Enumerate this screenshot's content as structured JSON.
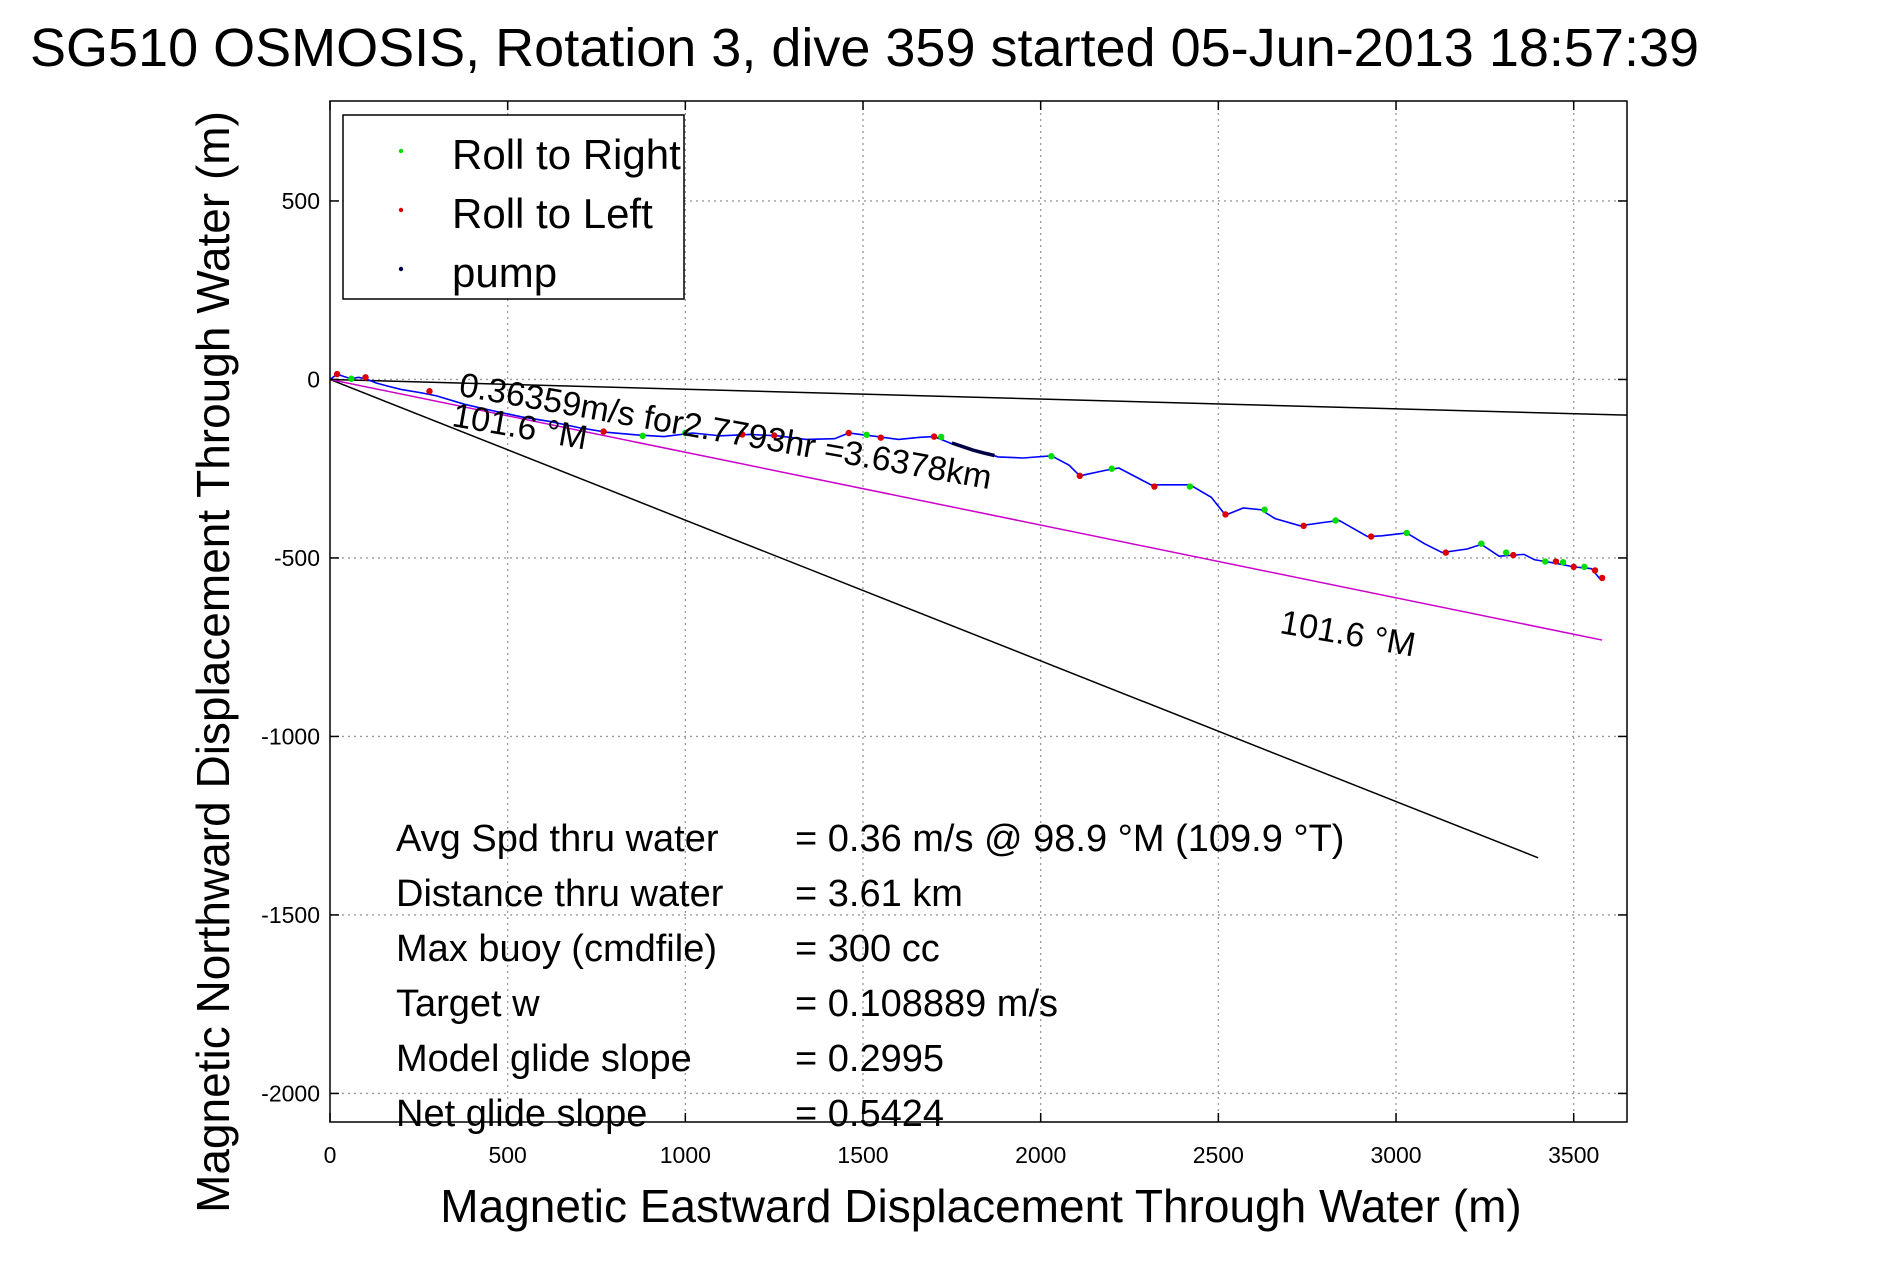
{
  "chart_data": {
    "type": "scatter",
    "title": "SG510 OSMOSIS, Rotation 3, dive 359 started 05-Jun-2013 18:57:39",
    "xlabel": "Magnetic Eastward Displacement Through Water (m)",
    "ylabel": "Magnetic Northward Displacement Through Water (m)",
    "xlim": [
      0,
      3650
    ],
    "ylim": [
      -2080,
      780
    ],
    "xticks": [
      0,
      500,
      1000,
      1500,
      2000,
      2500,
      3000,
      3500
    ],
    "yticks": [
      500,
      0,
      -500,
      -1000,
      -1500,
      -2000
    ],
    "grid": true,
    "legend": {
      "position": "top-left",
      "entries": [
        {
          "label": "Roll to Right",
          "color": "#00dd00"
        },
        {
          "label": "Roll to Left",
          "color": "#dd0000"
        },
        {
          "label": "pump",
          "color": "#000044"
        }
      ]
    },
    "track": {
      "name": "track",
      "color": "#0000ff",
      "x": [
        0,
        20,
        40,
        60,
        80,
        100,
        130,
        160,
        200,
        260,
        300,
        380,
        460,
        540,
        620,
        700,
        780,
        860,
        940,
        1020,
        1100,
        1180,
        1260,
        1340,
        1420,
        1460,
        1500,
        1540,
        1600,
        1660,
        1700,
        1750,
        1800,
        1850,
        1880,
        1950,
        2030,
        2080,
        2110,
        2180,
        2220,
        2310,
        2420,
        2480,
        2520,
        2570,
        2620,
        2660,
        2730,
        2800,
        2840,
        2920,
        2960,
        3030,
        3080,
        3130,
        3200,
        3240,
        3290,
        3360,
        3390,
        3450,
        3500,
        3550,
        3575
      ],
      "y": [
        0,
        15,
        8,
        2,
        6,
        2,
        -10,
        -18,
        -28,
        -38,
        -46,
        -70,
        -88,
        -105,
        -118,
        -135,
        -148,
        -155,
        -160,
        -150,
        -158,
        -154,
        -158,
        -168,
        -166,
        -150,
        -155,
        -160,
        -168,
        -162,
        -160,
        -180,
        -195,
        -207,
        -217,
        -220,
        -214,
        -240,
        -270,
        -255,
        -248,
        -295,
        -295,
        -330,
        -380,
        -360,
        -365,
        -390,
        -410,
        -400,
        -395,
        -440,
        -438,
        -430,
        -460,
        -485,
        -475,
        -462,
        -495,
        -490,
        -505,
        -515,
        -525,
        -530,
        -560
      ]
    },
    "roll_right_points": {
      "color": "#00dd00",
      "x": [
        60,
        880,
        1000,
        1510,
        1720,
        2030,
        2200,
        2420,
        2630,
        2830,
        3030,
        3240,
        3310,
        3420,
        3470,
        3530
      ],
      "y": [
        2,
        -158,
        -150,
        -155,
        -161,
        -215,
        -250,
        -300,
        -365,
        -395,
        -430,
        -460,
        -485,
        -510,
        -512,
        -525
      ]
    },
    "roll_left_points": {
      "color": "#dd0000",
      "x": [
        20,
        100,
        280,
        770,
        1160,
        1250,
        1460,
        1550,
        1700,
        2110,
        2320,
        2520,
        2740,
        2930,
        3140,
        3330,
        3450,
        3500,
        3560,
        3580
      ],
      "y": [
        15,
        6,
        -33,
        -146,
        -154,
        -157,
        -150,
        -163,
        -160,
        -270,
        -300,
        -378,
        -410,
        -440,
        -485,
        -492,
        -510,
        -525,
        -535,
        -556
      ]
    },
    "pump_segment": {
      "color": "#000044",
      "x": [
        1750,
        1780,
        1810,
        1840,
        1870
      ],
      "y": [
        -178,
        -188,
        -198,
        -206,
        -213
      ]
    },
    "reference_lines": [
      {
        "name": "reference line 1",
        "color": "#000000",
        "x": [
          0,
          3650
        ],
        "y": [
          0,
          -100
        ]
      },
      {
        "name": "reference line 2",
        "color": "#000000",
        "x": [
          0,
          3400
        ],
        "y": [
          0,
          -1340
        ]
      },
      {
        "name": "reference line 3",
        "color": "#cc00cc",
        "x": [
          0,
          3580
        ],
        "y": [
          0,
          -730
        ]
      }
    ],
    "annotations": [
      {
        "text": "0.36359m/s for2.7793hr =3.6378km",
        "x": 360,
        "y": -45,
        "rotate": 10
      },
      {
        "text": "101.6 °M",
        "x": 340,
        "y": -130,
        "rotate": 10
      },
      {
        "text": "101.6 °M",
        "x": 2670,
        "y": -710,
        "rotate": 10
      }
    ],
    "stats": [
      {
        "label": "Avg Spd thru water",
        "value": "=  0.36 m/s @  98.9 °M (109.9 °T)"
      },
      {
        "label": "Distance thru water",
        "value": "=  3.61 km"
      },
      {
        "label": "Max buoy (cmdfile)",
        "value": "= 300 cc"
      },
      {
        "label": "Target w",
        "value": "= 0.108889 m/s"
      },
      {
        "label": "Model glide slope",
        "value": "= 0.2995"
      },
      {
        "label": "Net glide slope",
        "value": "= 0.5424"
      }
    ]
  }
}
